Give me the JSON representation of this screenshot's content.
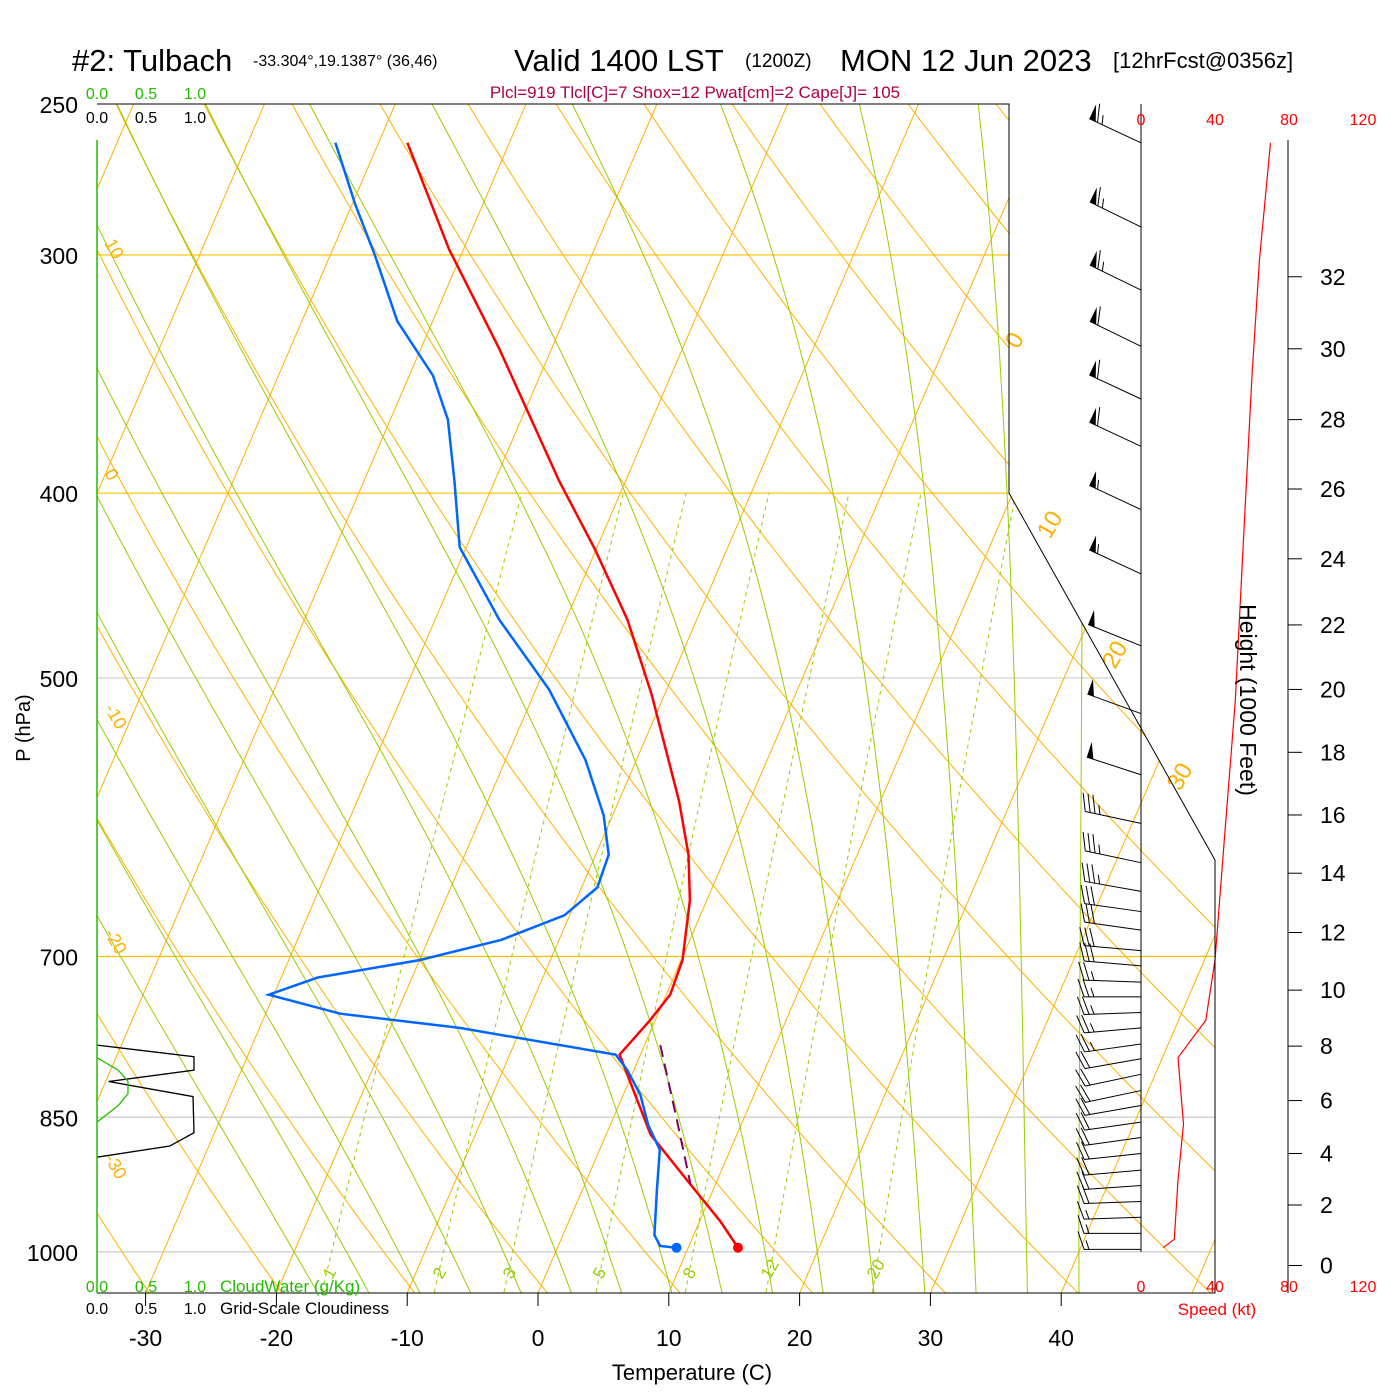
{
  "title": {
    "station": "#2: Tulbach",
    "coords": "-33.304°,19.1387° (36,46)",
    "valid": "Valid 1400 LST",
    "utc": "(1200Z)",
    "date": "MON 12 Jun 2023",
    "forecast": "[12hrFcst@0356z]"
  },
  "indices": "Plcl=919 Tlcl[C]=7 Shox=12 Pwat[cm]=2 Cape[J]= 105",
  "colors": {
    "temp": "#ff0000",
    "dew": "#0066ff",
    "parcel": "#800060",
    "isotherm": "#ffb000",
    "moist": "#99cc00",
    "cloudwater": "#22bb00",
    "cloudiness": "#000000",
    "speed": "#ff0000"
  },
  "chart_data": {
    "type": "line",
    "title": "Skew-T sounding",
    "xlabel": "Temperature (C)",
    "ylabel": "P (hPa)",
    "y2label": "Height (1000 Feet)",
    "xticks": [
      "-30",
      "-20",
      "-10",
      "0",
      "10",
      "20",
      "30",
      "40"
    ],
    "xtick_values": [
      -30,
      -20,
      -10,
      0,
      10,
      20,
      30,
      40
    ],
    "yticks": [
      "250",
      "300",
      "400",
      "500",
      "700",
      "850",
      "1000"
    ],
    "ytick_values": [
      250,
      300,
      400,
      500,
      700,
      850,
      1000
    ],
    "height_ticks": [
      "0",
      "2",
      "4",
      "6",
      "8",
      "10",
      "12",
      "14",
      "16",
      "18",
      "20",
      "22",
      "24",
      "26",
      "28",
      "30",
      "32"
    ],
    "height_tick_pressures": [
      1002,
      945,
      888,
      833,
      780,
      729,
      680,
      633,
      590,
      547,
      507,
      469,
      433,
      398,
      366,
      336,
      308
    ],
    "xlim": [
      -34,
      46
    ],
    "ylim": [
      1050,
      250
    ],
    "series": [
      {
        "name": "Temperature",
        "p": [
          262,
          298,
          336,
          394,
          428,
          466,
          510,
          580,
          619,
          654,
          703,
          733,
          756,
          788,
          868,
          922,
          964,
          995
        ],
        "T": [
          -47.8,
          -41.1,
          -34.0,
          -25.1,
          -20.1,
          -15.3,
          -11.0,
          -5.4,
          -2.9,
          -1.3,
          0.1,
          0.3,
          -0.4,
          -1.6,
          3.4,
          8.1,
          11.6,
          13.8
        ]
      },
      {
        "name": "Dewpoint",
        "p": [
          262,
          282,
          300,
          325,
          347,
          366,
          394,
          427,
          466,
          507,
          552,
          590,
          619,
          644,
          666,
          686,
          703,
          718,
          733,
          750,
          763,
          788,
          803,
          827,
          858,
          884,
          928,
          980,
          993,
          995
        ],
        "T": [
          -53.3,
          -49.8,
          -46.6,
          -42.7,
          -38.2,
          -35.6,
          -33.1,
          -30.5,
          -25.1,
          -19.0,
          -13.9,
          -10.7,
          -9.0,
          -8.8,
          -10.4,
          -14.4,
          -20.0,
          -27.2,
          -30.4,
          -24.3,
          -14.7,
          -1.9,
          -0.5,
          1.3,
          2.9,
          4.6,
          5.7,
          7.0,
          7.8,
          9.1
        ]
      },
      {
        "name": "Parcel",
        "p": [
          779,
          850,
          922
        ],
        "T": [
          1.2,
          4.8,
          8.1
        ]
      }
    ],
    "surface": {
      "p": 995,
      "T": 13.8,
      "Td": 9.1
    },
    "mixing_ratio_labels": [
      "1",
      "2",
      "3",
      "5",
      "8",
      "12",
      "20"
    ],
    "mixing_ratio_values": [
      1,
      2,
      3,
      5,
      8,
      12,
      20
    ],
    "adiabat_labels_left": [
      "10",
      "0",
      "-10",
      "-20",
      "-30"
    ],
    "adiabat_labels_right": [
      "0",
      "10",
      "20",
      "30"
    ],
    "wind": {
      "speed_label": "Speed (kt)",
      "speed_ticks": [
        "0",
        "40",
        "80",
        "120"
      ],
      "speed_tick_values": [
        0,
        40,
        80,
        120
      ],
      "speed_profile": {
        "p": [
          995,
          985,
          917,
          857,
          791,
          756,
          703,
          608,
          514,
          412,
          347,
          302,
          262
        ],
        "kt": [
          12,
          18,
          20,
          23,
          20,
          35,
          40,
          45,
          51,
          56,
          60,
          64,
          70
        ]
      },
      "barbs": [
        [
          262,
          245,
          65
        ],
        [
          290,
          244,
          65
        ],
        [
          313,
          244,
          65
        ],
        [
          335,
          244,
          60
        ],
        [
          357,
          245,
          60
        ],
        [
          378,
          245,
          60
        ],
        [
          408,
          245,
          55
        ],
        [
          441,
          245,
          55
        ],
        [
          481,
          248,
          50
        ],
        [
          522,
          250,
          50
        ],
        [
          562,
          252,
          50
        ],
        [
          596,
          258,
          35
        ],
        [
          625,
          258,
          35
        ],
        [
          647,
          260,
          35
        ],
        [
          663,
          262,
          30
        ],
        [
          678,
          262,
          30
        ],
        [
          695,
          265,
          30
        ],
        [
          708,
          265,
          30
        ],
        [
          722,
          268,
          25
        ],
        [
          735,
          270,
          25
        ],
        [
          749,
          272,
          25
        ],
        [
          763,
          275,
          25
        ],
        [
          778,
          278,
          25
        ],
        [
          792,
          280,
          20
        ],
        [
          807,
          282,
          20
        ],
        [
          823,
          282,
          20
        ],
        [
          838,
          280,
          20
        ],
        [
          855,
          278,
          20
        ],
        [
          871,
          278,
          20
        ],
        [
          888,
          276,
          20
        ],
        [
          906,
          275,
          20
        ],
        [
          923,
          274,
          20
        ],
        [
          941,
          272,
          20
        ],
        [
          959,
          272,
          15
        ],
        [
          978,
          270,
          15
        ],
        [
          997,
          270,
          15
        ]
      ]
    },
    "cloud": {
      "cloudwater_label": "CloudWater (g/Kg)",
      "cloudiness_label": "Grid-Scale Cloudiness",
      "scale_ticks": [
        "0.0",
        "0.5",
        "1.0"
      ],
      "cloudiness": {
        "p": [
          779,
          790,
          803,
          814,
          829,
          866,
          880,
          892
        ],
        "v": [
          0,
          1.0,
          1.0,
          0.12,
          0.99,
          1.0,
          0.75,
          0
        ]
      },
      "cloudwater": {
        "p": [
          791,
          803,
          814,
          826,
          838,
          855
        ],
        "v": [
          0,
          0.22,
          0.32,
          0.32,
          0.22,
          0
        ]
      }
    }
  }
}
